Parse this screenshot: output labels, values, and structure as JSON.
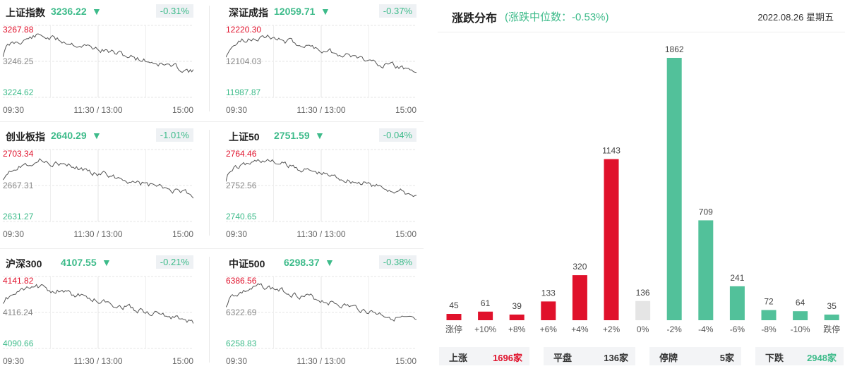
{
  "indices": [
    {
      "name": "上证指数",
      "value": "3236.22",
      "change": "-0.31%",
      "high": "3267.88",
      "mid": "3246.25",
      "low": "3224.62",
      "seed": 11
    },
    {
      "name": "深证成指",
      "value": "12059.71",
      "change": "-0.37%",
      "high": "12220.30",
      "mid": "12104.03",
      "low": "11987.87",
      "seed": 23
    },
    {
      "name": "创业板指",
      "value": "2640.29",
      "change": "-1.01%",
      "high": "2703.34",
      "mid": "2667.31",
      "low": "2631.27",
      "seed": 37
    },
    {
      "name": "上证50",
      "value": "2751.59",
      "change": "-0.04%",
      "high": "2764.46",
      "mid": "2752.56",
      "low": "2740.65",
      "seed": 41
    },
    {
      "name": "沪深300",
      "value": "4107.55",
      "change": "-0.21%",
      "high": "4141.82",
      "mid": "4116.24",
      "low": "4090.66",
      "seed": 53
    },
    {
      "name": "中证500",
      "value": "6298.37",
      "change": "-0.38%",
      "high": "6386.56",
      "mid": "6322.69",
      "low": "6258.83",
      "seed": 67
    }
  ],
  "time_axis": [
    "09:30",
    "11:30 / 13:00",
    "15:00"
  ],
  "distribution": {
    "title": "涨跌分布",
    "subtitle": "(涨跌中位数：-0.53%)",
    "date": "2022.08.26 星期五"
  },
  "chart_data": {
    "type": "bar",
    "title": "涨跌分布",
    "categories": [
      "涨停",
      "+10%",
      "+8%",
      "+6%",
      "+4%",
      "+2%",
      "0%",
      "-2%",
      "-4%",
      "-6%",
      "-8%",
      "-10%",
      "跌停"
    ],
    "values": [
      45,
      61,
      39,
      133,
      320,
      1143,
      136,
      1862,
      709,
      241,
      72,
      64,
      35
    ],
    "colors": [
      "#e0112b",
      "#e0112b",
      "#e0112b",
      "#e0112b",
      "#e0112b",
      "#e0112b",
      "#e5e5e5",
      "#52c19a",
      "#52c19a",
      "#52c19a",
      "#52c19a",
      "#52c19a",
      "#52c19a"
    ],
    "ylim": [
      0,
      1862
    ]
  },
  "summary": [
    {
      "label": "上涨",
      "value": "1696家",
      "color": "#e0112b"
    },
    {
      "label": "平盘",
      "value": "136家",
      "color": "#333333"
    },
    {
      "label": "停牌",
      "value": "5家",
      "color": "#333333"
    },
    {
      "label": "下跌",
      "value": "2948家",
      "color": "#3dbb8a"
    }
  ],
  "colors": {
    "up": "#e0112b",
    "down": "#3dbb8a",
    "flat": "#e5e5e5"
  }
}
